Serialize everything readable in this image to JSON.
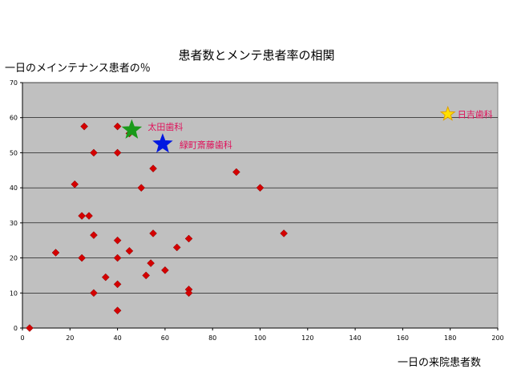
{
  "chart_data": {
    "type": "scatter",
    "title": "患者数とメンテ患者率の相関",
    "xlabel": "一日の来院患者数",
    "ylabel": "一日のメインテナンス患者の％",
    "xlim": [
      0,
      200
    ],
    "ylim": [
      0,
      70
    ],
    "xticks": [
      "0",
      "20",
      "40",
      "60",
      "80",
      "100",
      "120",
      "140",
      "160",
      "180",
      "200"
    ],
    "yticks": [
      "0",
      "10",
      "20",
      "30",
      "40",
      "50",
      "60",
      "70"
    ],
    "grid": "horizontal",
    "plot_background": "#c0c0c0",
    "marker_color": "#d40000",
    "points": [
      {
        "x": 3,
        "y": 0
      },
      {
        "x": 14,
        "y": 21.5
      },
      {
        "x": 22,
        "y": 41
      },
      {
        "x": 25,
        "y": 32
      },
      {
        "x": 25,
        "y": 20
      },
      {
        "x": 26,
        "y": 57.5
      },
      {
        "x": 28,
        "y": 32
      },
      {
        "x": 30,
        "y": 50
      },
      {
        "x": 30,
        "y": 26.5
      },
      {
        "x": 30,
        "y": 10
      },
      {
        "x": 35,
        "y": 14.5
      },
      {
        "x": 40,
        "y": 57.5
      },
      {
        "x": 40,
        "y": 50
      },
      {
        "x": 40,
        "y": 25
      },
      {
        "x": 40,
        "y": 20
      },
      {
        "x": 40,
        "y": 12.5
      },
      {
        "x": 40,
        "y": 5
      },
      {
        "x": 45,
        "y": 55.5
      },
      {
        "x": 45,
        "y": 22
      },
      {
        "x": 50,
        "y": 40
      },
      {
        "x": 52,
        "y": 15
      },
      {
        "x": 54,
        "y": 18.5
      },
      {
        "x": 55,
        "y": 45.5
      },
      {
        "x": 55,
        "y": 27
      },
      {
        "x": 60,
        "y": 16.5
      },
      {
        "x": 65,
        "y": 23
      },
      {
        "x": 70,
        "y": 25.5
      },
      {
        "x": 70,
        "y": 11
      },
      {
        "x": 70,
        "y": 10
      },
      {
        "x": 90,
        "y": 44.5
      },
      {
        "x": 100,
        "y": 40
      },
      {
        "x": 110,
        "y": 27
      }
    ],
    "highlights": [
      {
        "label": "太田歯科",
        "x": 46,
        "y": 56.5,
        "color": "#1a9a1a",
        "stroke": "#1a9a1a"
      },
      {
        "label": "緑町斎藤歯科",
        "x": 59,
        "y": 52.5,
        "color": "#0018e0",
        "stroke": "#0018e0"
      },
      {
        "label": "日吉歯科",
        "x": 179,
        "y": 61,
        "color": "#ffe000",
        "stroke": "#e0a000"
      }
    ]
  }
}
